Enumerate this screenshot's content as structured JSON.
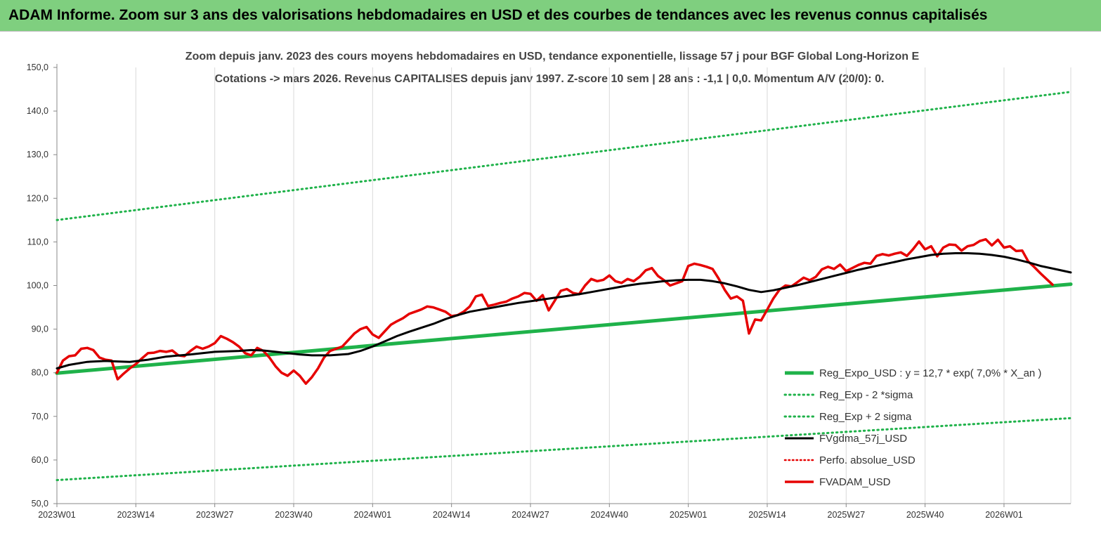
{
  "banner": {
    "title": "ADAM Informe. Zoom sur 3 ans des valorisations hebdomadaires en USD et des courbes de tendances avec les revenus connus capitalisés"
  },
  "colors": {
    "banner_bg": "#7fcf7f",
    "trend": "#1fb24a",
    "sigma": "#1fb24a",
    "smooth": "#000000",
    "perfo": "#e60000",
    "fvadam": "#e60000",
    "grid": "#d9d9d9"
  },
  "chart_data": {
    "type": "line",
    "title": "Zoom depuis janv. 2023 des cours moyens hebdomadaires en USD, tendance exponentielle, lissage 57 j pour BGF Global Long-Horizon E",
    "subtitle": "Cotations -> mars 2026. Revenus CAPITALISES depuis janv 1997. Z-score 10 sem | 28 ans : -1,1 | 0,0. Momentum A/V (20/0): 0.",
    "xlabel": "",
    "ylabel": "",
    "ylim": [
      50,
      150
    ],
    "yticks": [
      "50,0",
      "60,0",
      "70,0",
      "80,0",
      "90,0",
      "100,0",
      "110,0",
      "120,0",
      "130,0",
      "140,0",
      "150,0"
    ],
    "xticks": [
      "2023W01",
      "2023W14",
      "2023W27",
      "2023W40",
      "2024W01",
      "2024W14",
      "2024W27",
      "2024W40",
      "2025W01",
      "2025W14",
      "2025W27",
      "2025W40",
      "2026W01"
    ],
    "x_range": [
      0,
      167
    ],
    "grid": "vertical",
    "legend_position": "bottom-right",
    "series": [
      {
        "name": "Reg_Expo_USD : y = 12,7 * exp( 7,0% *  X_an )",
        "style": "solid-thick",
        "points": [
          [
            0,
            79.9
          ],
          [
            167,
            100.3
          ]
        ]
      },
      {
        "name": "Reg_Exp - 2 *sigma",
        "style": "dotted",
        "points": [
          [
            0,
            55.4
          ],
          [
            167,
            69.6
          ]
        ]
      },
      {
        "name": "Reg_Exp + 2 sigma",
        "style": "dotted",
        "points": [
          [
            0,
            115.0
          ],
          [
            167,
            144.4
          ]
        ]
      },
      {
        "name": "FVgdma_57j_USD",
        "style": "solid-black",
        "points": [
          [
            0,
            81.0
          ],
          [
            2,
            81.8
          ],
          [
            5,
            82.5
          ],
          [
            8,
            82.7
          ],
          [
            10,
            82.6
          ],
          [
            12,
            82.5
          ],
          [
            15,
            83.0
          ],
          [
            18,
            83.7
          ],
          [
            22,
            84.2
          ],
          [
            26,
            84.8
          ],
          [
            30,
            85.0
          ],
          [
            32,
            85.2
          ],
          [
            34,
            85.1
          ],
          [
            36,
            84.8
          ],
          [
            38,
            84.5
          ],
          [
            40,
            84.2
          ],
          [
            42,
            84.0
          ],
          [
            45,
            84.0
          ],
          [
            48,
            84.3
          ],
          [
            50,
            85.0
          ],
          [
            52,
            86.0
          ],
          [
            54,
            87.2
          ],
          [
            56,
            88.4
          ],
          [
            58,
            89.4
          ],
          [
            60,
            90.3
          ],
          [
            62,
            91.2
          ],
          [
            64,
            92.3
          ],
          [
            66,
            93.2
          ],
          [
            68,
            94.0
          ],
          [
            70,
            94.5
          ],
          [
            72,
            95.0
          ],
          [
            74,
            95.5
          ],
          [
            76,
            96.0
          ],
          [
            78,
            96.4
          ],
          [
            80,
            96.8
          ],
          [
            82,
            97.2
          ],
          [
            84,
            97.6
          ],
          [
            86,
            98.0
          ],
          [
            88,
            98.5
          ],
          [
            90,
            99.0
          ],
          [
            92,
            99.5
          ],
          [
            94,
            100.0
          ],
          [
            96,
            100.4
          ],
          [
            98,
            100.7
          ],
          [
            100,
            101.0
          ],
          [
            102,
            101.2
          ],
          [
            104,
            101.3
          ],
          [
            106,
            101.3
          ],
          [
            108,
            101.0
          ],
          [
            110,
            100.5
          ],
          [
            112,
            99.8
          ],
          [
            114,
            99.0
          ],
          [
            116,
            98.5
          ],
          [
            118,
            98.9
          ],
          [
            120,
            99.5
          ],
          [
            122,
            100.1
          ],
          [
            124,
            100.8
          ],
          [
            126,
            101.5
          ],
          [
            128,
            102.2
          ],
          [
            130,
            102.9
          ],
          [
            132,
            103.6
          ],
          [
            134,
            104.2
          ],
          [
            136,
            104.8
          ],
          [
            138,
            105.4
          ],
          [
            140,
            106.0
          ],
          [
            142,
            106.5
          ],
          [
            144,
            107.0
          ],
          [
            146,
            107.3
          ],
          [
            148,
            107.4
          ],
          [
            150,
            107.4
          ],
          [
            152,
            107.3
          ],
          [
            154,
            107.0
          ],
          [
            156,
            106.6
          ],
          [
            158,
            106.0
          ],
          [
            160,
            105.3
          ],
          [
            162,
            104.5
          ],
          [
            165,
            103.6
          ],
          [
            167,
            103.0
          ]
        ]
      },
      {
        "name": "Perfo. absolue_USD",
        "style": "dotted-red",
        "points": []
      },
      {
        "name": "FVADAM_USD",
        "style": "solid-red",
        "points": [
          [
            0,
            80.0
          ],
          [
            1,
            82.8
          ],
          [
            2,
            83.8
          ],
          [
            3,
            84.0
          ],
          [
            4,
            85.5
          ],
          [
            5,
            85.7
          ],
          [
            6,
            85.2
          ],
          [
            7,
            83.5
          ],
          [
            8,
            83.0
          ],
          [
            9,
            82.8
          ],
          [
            10,
            78.5
          ],
          [
            11,
            79.8
          ],
          [
            12,
            81.0
          ],
          [
            13,
            82.0
          ],
          [
            14,
            83.3
          ],
          [
            15,
            84.5
          ],
          [
            16,
            84.6
          ],
          [
            17,
            85.0
          ],
          [
            18,
            84.8
          ],
          [
            19,
            85.1
          ],
          [
            20,
            84.0
          ],
          [
            21,
            83.8
          ],
          [
            22,
            85.0
          ],
          [
            23,
            86.0
          ],
          [
            24,
            85.5
          ],
          [
            25,
            86.0
          ],
          [
            26,
            86.8
          ],
          [
            27,
            88.4
          ],
          [
            28,
            87.8
          ],
          [
            29,
            87.0
          ],
          [
            30,
            86.0
          ],
          [
            31,
            84.5
          ],
          [
            32,
            84.0
          ],
          [
            33,
            85.7
          ],
          [
            34,
            85.0
          ],
          [
            35,
            83.5
          ],
          [
            36,
            81.5
          ],
          [
            37,
            80.0
          ],
          [
            38,
            79.3
          ],
          [
            39,
            80.5
          ],
          [
            40,
            79.3
          ],
          [
            41,
            77.5
          ],
          [
            42,
            79.0
          ],
          [
            43,
            81.0
          ],
          [
            44,
            83.5
          ],
          [
            45,
            85.0
          ],
          [
            46,
            85.5
          ],
          [
            47,
            86.0
          ],
          [
            48,
            87.5
          ],
          [
            49,
            89.0
          ],
          [
            50,
            90.0
          ],
          [
            51,
            90.5
          ],
          [
            52,
            88.8
          ],
          [
            53,
            88.0
          ],
          [
            54,
            89.5
          ],
          [
            55,
            91.0
          ],
          [
            56,
            91.8
          ],
          [
            57,
            92.5
          ],
          [
            58,
            93.5
          ],
          [
            59,
            94.0
          ],
          [
            60,
            94.5
          ],
          [
            61,
            95.2
          ],
          [
            62,
            95.0
          ],
          [
            63,
            94.5
          ],
          [
            64,
            94.0
          ],
          [
            65,
            93.0
          ],
          [
            66,
            93.2
          ],
          [
            67,
            94.0
          ],
          [
            68,
            95.2
          ],
          [
            69,
            97.5
          ],
          [
            70,
            97.9
          ],
          [
            71,
            95.3
          ],
          [
            72,
            95.6
          ],
          [
            73,
            96.0
          ],
          [
            74,
            96.3
          ],
          [
            75,
            97.0
          ],
          [
            76,
            97.5
          ],
          [
            77,
            98.3
          ],
          [
            78,
            98.1
          ],
          [
            79,
            96.5
          ],
          [
            80,
            97.8
          ],
          [
            81,
            94.3
          ],
          [
            82,
            96.5
          ],
          [
            83,
            98.8
          ],
          [
            84,
            99.2
          ],
          [
            85,
            98.3
          ],
          [
            86,
            98.0
          ],
          [
            87,
            100.0
          ],
          [
            88,
            101.5
          ],
          [
            89,
            101.0
          ],
          [
            90,
            101.3
          ],
          [
            91,
            102.3
          ],
          [
            92,
            101.0
          ],
          [
            93,
            100.6
          ],
          [
            94,
            101.5
          ],
          [
            95,
            101.0
          ],
          [
            96,
            102.0
          ],
          [
            97,
            103.5
          ],
          [
            98,
            104.0
          ],
          [
            99,
            102.2
          ],
          [
            100,
            101.2
          ],
          [
            101,
            100.0
          ],
          [
            102,
            100.5
          ],
          [
            103,
            101.0
          ],
          [
            104,
            104.5
          ],
          [
            105,
            105.0
          ],
          [
            106,
            104.7
          ],
          [
            107,
            104.3
          ],
          [
            108,
            103.8
          ],
          [
            109,
            101.6
          ],
          [
            110,
            99.0
          ],
          [
            111,
            97.0
          ],
          [
            112,
            97.5
          ],
          [
            113,
            96.5
          ],
          [
            114,
            89.0
          ],
          [
            115,
            92.2
          ],
          [
            116,
            92.0
          ],
          [
            117,
            94.5
          ],
          [
            118,
            97.0
          ],
          [
            119,
            99.0
          ],
          [
            120,
            100.0
          ],
          [
            121,
            99.8
          ],
          [
            122,
            100.8
          ],
          [
            123,
            101.8
          ],
          [
            124,
            101.2
          ],
          [
            125,
            102.0
          ],
          [
            126,
            103.7
          ],
          [
            127,
            104.3
          ],
          [
            128,
            103.8
          ],
          [
            129,
            104.8
          ],
          [
            130,
            103.3
          ],
          [
            131,
            104.0
          ],
          [
            132,
            104.7
          ],
          [
            133,
            105.2
          ],
          [
            134,
            105.0
          ],
          [
            135,
            106.8
          ],
          [
            136,
            107.2
          ],
          [
            137,
            106.9
          ],
          [
            138,
            107.3
          ],
          [
            139,
            107.6
          ],
          [
            140,
            106.8
          ],
          [
            141,
            108.3
          ],
          [
            142,
            110.1
          ],
          [
            143,
            108.3
          ],
          [
            144,
            109.0
          ],
          [
            145,
            106.7
          ],
          [
            146,
            108.7
          ],
          [
            147,
            109.4
          ],
          [
            148,
            109.3
          ],
          [
            149,
            108.0
          ],
          [
            150,
            109.0
          ],
          [
            151,
            109.3
          ],
          [
            152,
            110.2
          ],
          [
            153,
            110.6
          ],
          [
            154,
            109.2
          ],
          [
            155,
            110.5
          ],
          [
            156,
            108.7
          ],
          [
            157,
            109.0
          ],
          [
            158,
            107.9
          ],
          [
            159,
            108.0
          ],
          [
            160,
            105.5
          ],
          [
            161,
            104.2
          ],
          [
            162,
            102.8
          ],
          [
            163,
            101.5
          ],
          [
            164,
            100.2
          ]
        ]
      }
    ]
  }
}
